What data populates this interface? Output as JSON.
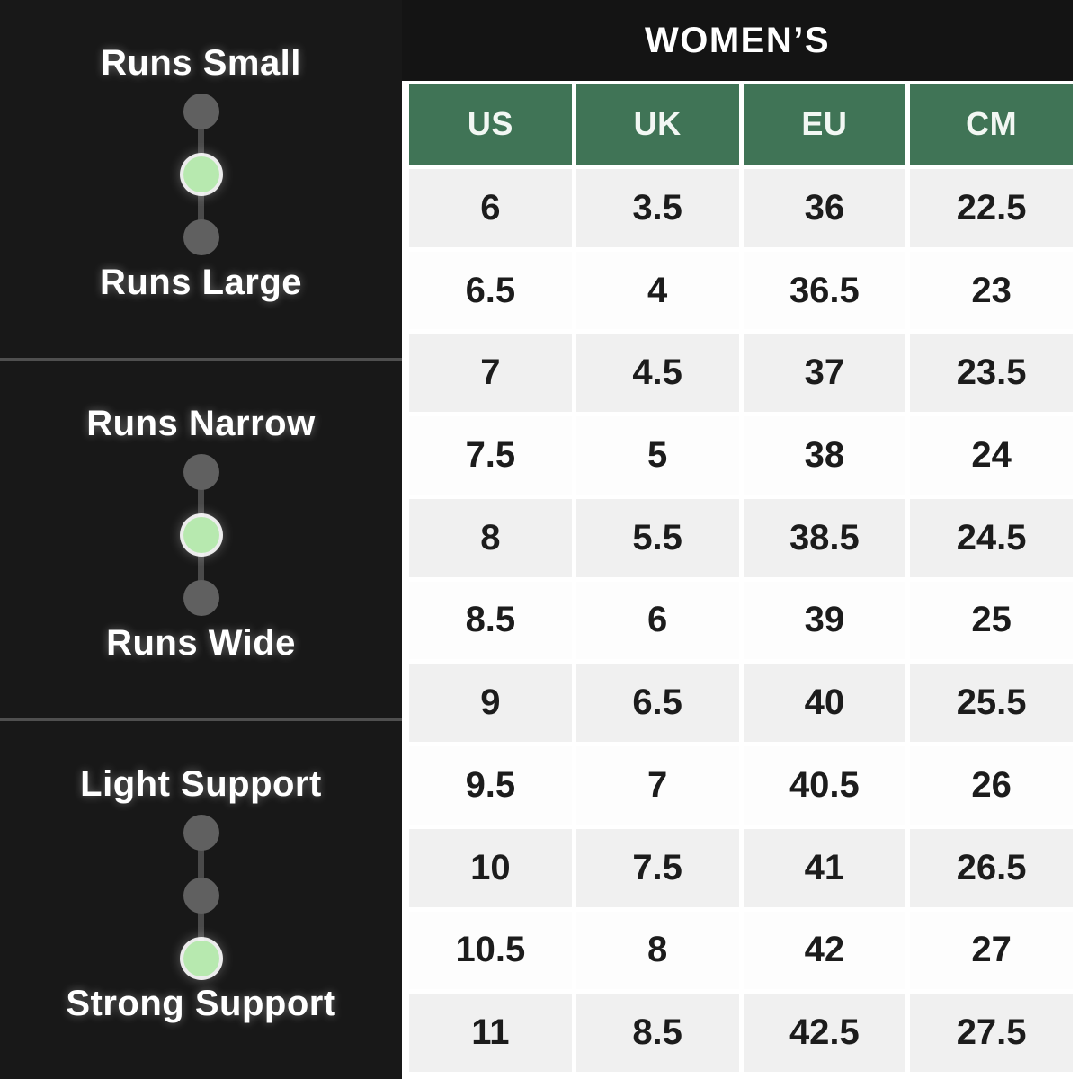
{
  "left_panel": {
    "sections": [
      {
        "top_label": "Runs Small",
        "bottom_label": "Runs Large",
        "dots": [
          "inactive",
          "active",
          "inactive"
        ]
      },
      {
        "top_label": "Runs Narrow",
        "bottom_label": "Runs Wide",
        "dots": [
          "inactive",
          "active",
          "inactive"
        ]
      },
      {
        "top_label": "Light Support",
        "bottom_label": "Strong Support",
        "dots": [
          "inactive",
          "inactive",
          "active"
        ]
      }
    ],
    "colors": {
      "panel_bg": "#181818",
      "divider": "#4f4f4f",
      "dot_inactive": "#606060",
      "dot_active": "#b7e9af",
      "connector": "#4a4a4a",
      "label_text": "#ffffff"
    }
  },
  "size_table": {
    "title": "WOMEN’S",
    "columns": [
      "US",
      "UK",
      "EU",
      "CM"
    ],
    "rows": [
      [
        "6",
        "3.5",
        "36",
        "22.5"
      ],
      [
        "6.5",
        "4",
        "36.5",
        "23"
      ],
      [
        "7",
        "4.5",
        "37",
        "23.5"
      ],
      [
        "7.5",
        "5",
        "38",
        "24"
      ],
      [
        "8",
        "5.5",
        "38.5",
        "24.5"
      ],
      [
        "8.5",
        "6",
        "39",
        "25"
      ],
      [
        "9",
        "6.5",
        "40",
        "25.5"
      ],
      [
        "9.5",
        "7",
        "40.5",
        "26"
      ],
      [
        "10",
        "7.5",
        "41",
        "26.5"
      ],
      [
        "10.5",
        "8",
        "42",
        "27"
      ],
      [
        "11",
        "8.5",
        "42.5",
        "27.5"
      ]
    ],
    "colors": {
      "title_bg": "#141414",
      "title_text": "#ffffff",
      "header_bg": "#407456",
      "header_text": "#f2f7f3",
      "row_odd": "#f0f0f0",
      "row_even": "#fdfdfd",
      "cell_text": "#1c1c1c"
    }
  },
  "chart_data": {
    "type": "table",
    "title": "WOMEN’S",
    "columns": [
      "US",
      "UK",
      "EU",
      "CM"
    ],
    "rows": [
      [
        6,
        3.5,
        36,
        22.5
      ],
      [
        6.5,
        4,
        36.5,
        23
      ],
      [
        7,
        4.5,
        37,
        23.5
      ],
      [
        7.5,
        5,
        38,
        24
      ],
      [
        8,
        5.5,
        38.5,
        24.5
      ],
      [
        8.5,
        6,
        39,
        25
      ],
      [
        9,
        6.5,
        40,
        25.5
      ],
      [
        9.5,
        7,
        40.5,
        26
      ],
      [
        10,
        7.5,
        41,
        26.5
      ],
      [
        10.5,
        8,
        42,
        27
      ],
      [
        11,
        8.5,
        42.5,
        27.5
      ]
    ],
    "annotations": [
      {
        "scale": "fit-length",
        "min_label": "Runs Small",
        "max_label": "Runs Large",
        "selected_level": 2,
        "levels": 3
      },
      {
        "scale": "fit-width",
        "min_label": "Runs Narrow",
        "max_label": "Runs Wide",
        "selected_level": 2,
        "levels": 3
      },
      {
        "scale": "support",
        "min_label": "Light Support",
        "max_label": "Strong Support",
        "selected_level": 3,
        "levels": 3
      }
    ]
  }
}
